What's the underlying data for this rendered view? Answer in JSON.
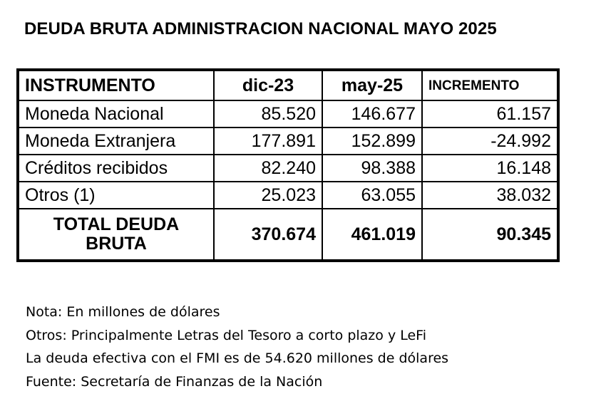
{
  "title": "DEUDA BRUTA ADMINISTRACION NACIONAL MAYO 2025",
  "table": {
    "headers": {
      "instrument": "INSTRUMENTO",
      "col1": "dic-23",
      "col2": "may-25",
      "col3": "INCREMENTO"
    },
    "rows": [
      {
        "label": "Moneda  Nacional",
        "dic": "85.520",
        "may": "146.677",
        "inc": "61.157"
      },
      {
        "label": "Moneda Extranjera",
        "dic": "177.891",
        "may": "152.899",
        "inc": "-24.992"
      },
      {
        "label": "Créditos recibidos",
        "dic": "82.240",
        "may": "98.388",
        "inc": "16.148"
      },
      {
        "label": "Otros (1)",
        "dic": "25.023",
        "may": "63.055",
        "inc": "38.032"
      }
    ],
    "total": {
      "label": "TOTAL DEUDA BRUTA",
      "dic": "370.674",
      "may": "461.019",
      "inc": "90.345"
    }
  },
  "notes": [
    "Nota: En millones de dólares",
    "Otros: Principalmente Letras del Tesoro a corto plazo y LeFi",
    "La deuda  efectiva con el FMI es de 54.620 millones de dólares",
    "Fuente:  Secretaría de Finanzas de la Nación"
  ]
}
